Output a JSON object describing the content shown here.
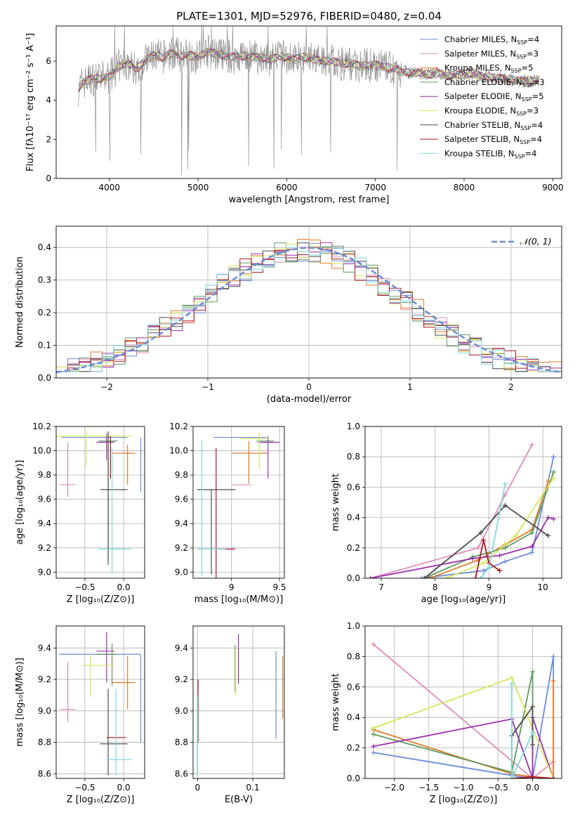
{
  "figure": {
    "title": "PLATE=1301, MJD=52976, FIBERID=0480, z=0.04"
  },
  "chart_data": [
    {
      "id": "spectrum",
      "type": "line",
      "xlabel": "wavelength [Angstrom, rest frame]",
      "ylabel": "Flux [fλ10⁻¹⁷ erg cm⁻² s⁻¹ A⁻¹]",
      "xlim": [
        3400,
        9100
      ],
      "ylim": [
        0,
        7.8
      ],
      "xticks": [
        4000,
        5000,
        6000,
        7000,
        8000,
        9000
      ],
      "yticks": [
        0,
        2,
        4,
        6
      ],
      "grid": false,
      "legend_position": "top-right",
      "data_model": "grey",
      "series": [
        {
          "name": "Chabrier MILES, N_SSP=4",
          "color": "#6a8cd8"
        },
        {
          "name": "Salpeter MILES, N_SSP=3",
          "color": "#e08cb9"
        },
        {
          "name": "Kroupa MILES, N_SSP=5",
          "color": "#e07b26"
        },
        {
          "name": "Chabrier ELODIE, N_SSP=3",
          "color": "#5e9a5e"
        },
        {
          "name": "Salpeter ELODIE, N_SSP=5",
          "color": "#9b2fae"
        },
        {
          "name": "Kroupa ELODIE, N_SSP=3",
          "color": "#d7e65c"
        },
        {
          "name": "Chabrier STELIB, N_SSP=4",
          "color": "#4d4d4d"
        },
        {
          "name": "Salpeter STELIB, N_SSP=4",
          "color": "#b0141c"
        },
        {
          "name": "Kroupa STELIB, N_SSP=4",
          "color": "#7fd9e0"
        }
      ],
      "model_curve": {
        "x": [
          3650,
          3700,
          3800,
          3900,
          4000,
          4100,
          4200,
          4300,
          4400,
          4500,
          4600,
          4700,
          4800,
          4900,
          5000,
          5100,
          5200,
          5300,
          5400,
          5500,
          5600,
          5700,
          5800,
          5900,
          6000,
          6100,
          6200,
          6300,
          6400,
          6500,
          6600,
          6700,
          6800,
          6900,
          7000,
          7100,
          7200,
          7300,
          7400,
          7500,
          7600,
          7700,
          7800,
          7900,
          8000,
          8100,
          8200,
          8300,
          8400,
          8500,
          8600,
          8700,
          8800,
          8850
        ],
        "y": [
          4.6,
          4.9,
          5.1,
          5.1,
          5.2,
          5.7,
          5.9,
          5.6,
          6.0,
          6.3,
          6.2,
          6.4,
          6.3,
          6.3,
          6.2,
          6.5,
          6.4,
          6.3,
          6.2,
          6.3,
          6.2,
          6.2,
          6.1,
          6.2,
          6.2,
          6.1,
          6.2,
          6.1,
          6.0,
          6.0,
          5.9,
          5.9,
          5.8,
          5.8,
          5.8,
          5.7,
          5.6,
          5.5,
          5.4,
          5.4,
          5.3,
          5.4,
          5.3,
          5.3,
          5.3,
          5.4,
          5.2,
          5.2,
          5.1,
          5.1,
          5.0,
          5.0,
          5.0,
          5.0
        ]
      }
    },
    {
      "id": "residuals",
      "type": "line",
      "xlabel": "(data-model)/error",
      "ylabel": "Normed distribution",
      "xlim": [
        -2.5,
        2.5
      ],
      "ylim": [
        0,
        0.465
      ],
      "xticks": [
        -2,
        -1,
        0,
        1,
        2
      ],
      "yticks": [
        0.0,
        0.1,
        0.2,
        0.3,
        0.4
      ],
      "grid": true,
      "legend_position": "top-right",
      "legend_entry": "𝒩(0, 1)",
      "normal_curve": {
        "mean": 0,
        "sigma": 1,
        "color": "#6a8cd8"
      },
      "hist_bins": 44
    },
    {
      "id": "age-vs-Z",
      "type": "scatter",
      "xlabel": "Z [log₁₀(Z/Z⊙)]",
      "ylabel": "age  [log₁₀(age/yr)]",
      "xlim": [
        -0.87,
        0.27
      ],
      "ylim": [
        8.95,
        10.2
      ],
      "xticks": [
        -0.5,
        0.0
      ],
      "xticklabels": [
        "−0.5",
        "0.0"
      ],
      "yticks": [
        9.0,
        9.2,
        9.4,
        9.6,
        9.8,
        10.0,
        10.2
      ],
      "grid": true,
      "points": [
        {
          "color": "#6a8cd8",
          "x": 0.22,
          "y": 10.11,
          "xerr": [
            0.0,
            0.0
          ],
          "yerr": [
            0.45,
            0.0
          ]
        },
        {
          "color": "#6a8cd8",
          "x": -0.35,
          "y": 10.11,
          "xerr": [
            0.45,
            0.4
          ],
          "yerr": [
            0,
            0
          ]
        },
        {
          "color": "#e08cb9",
          "x": -0.72,
          "y": 9.72,
          "xerr": [
            0.1,
            0.1
          ],
          "yerr": [
            0.1,
            0.35
          ]
        },
        {
          "color": "#e07b26",
          "x": 0.05,
          "y": 9.98,
          "xerr": [
            0.2,
            0.1
          ],
          "yerr": [
            0.26,
            0.07
          ]
        },
        {
          "color": "#5e9a5e",
          "x": -0.2,
          "y": 10.08,
          "xerr": [
            0.12,
            0.12
          ],
          "yerr": [
            0.97,
            0.05
          ]
        },
        {
          "color": "#9b2fae",
          "x": -0.22,
          "y": 10.07,
          "xerr": [
            0.13,
            0.1
          ],
          "yerr": [
            0.15,
            0.07
          ]
        },
        {
          "color": "#d7e65c",
          "x": -0.48,
          "y": 10.12,
          "xerr": [
            0.4,
            0.6
          ],
          "yerr": [
            0.25,
            0.05
          ]
        },
        {
          "color": "#4d4d4d",
          "x": -0.2,
          "y": 9.68,
          "xerr": [
            0.1,
            0.25
          ],
          "yerr": [
            0.62,
            0.48
          ]
        },
        {
          "color": "#b0141c",
          "x": -0.17,
          "y": 10.07,
          "xerr": [
            0,
            0
          ],
          "yerr": [
            0.3,
            0.05
          ]
        },
        {
          "color": "#7fd9e0",
          "x": -0.15,
          "y": 9.19,
          "xerr": [
            0.18,
            0.25
          ],
          "yerr": [
            0.2,
            0.83
          ]
        }
      ]
    },
    {
      "id": "age-vs-mass",
      "type": "scatter",
      "xlabel": "mass [log₁₀(M/M⊙)]",
      "ylabel": "",
      "xlim": [
        8.6,
        9.55
      ],
      "ylim": [
        8.95,
        10.2
      ],
      "xticks": [
        9.0,
        9.5
      ],
      "yticks": [
        9.0,
        9.2,
        9.4,
        9.6,
        9.8,
        10.0,
        10.2
      ],
      "grid": true,
      "points": [
        {
          "color": "#6a8cd8",
          "x": 9.36,
          "y": 10.11,
          "xerr": [
            0.55,
            0.0
          ],
          "yerr": [
            0.0,
            0.0
          ]
        },
        {
          "color": "#e08cb9",
          "x": 9.01,
          "y": 9.72,
          "xerr": [
            0.0,
            0.2
          ],
          "yerr": [
            0,
            0
          ]
        },
        {
          "color": "#e07b26",
          "x": 9.18,
          "y": 9.98,
          "xerr": [
            0.18,
            0.2
          ],
          "yerr": [
            0.25,
            0.1
          ]
        },
        {
          "color": "#5e9a5e",
          "x": 9.36,
          "y": 10.08,
          "xerr": [
            0.1,
            0.08
          ],
          "yerr": [
            0,
            0
          ]
        },
        {
          "color": "#9b2fae",
          "x": 9.38,
          "y": 10.07,
          "xerr": [
            0.1,
            0.12
          ],
          "yerr": [
            0.3,
            0.05
          ]
        },
        {
          "color": "#d7e65c",
          "x": 9.29,
          "y": 10.1,
          "xerr": [
            0.2,
            0.1
          ],
          "yerr": [
            0.25,
            0.05
          ]
        },
        {
          "color": "#4d4d4d",
          "x": 8.79,
          "y": 9.68,
          "xerr": [
            0.15,
            0.25
          ],
          "yerr": [
            0.7,
            0.0
          ]
        },
        {
          "color": "#b0141c",
          "x": 8.84,
          "y": 9.19,
          "xerr": [
            0.0,
            0.2
          ],
          "yerr": [
            0.3,
            0.83
          ]
        },
        {
          "color": "#7fd9e0",
          "x": 8.69,
          "y": 9.19,
          "xerr": [
            0.05,
            0.25
          ],
          "yerr": [
            0.22,
            0.9
          ]
        }
      ]
    },
    {
      "id": "mass-weight-vs-age",
      "type": "line",
      "xlabel": "age  [log₁₀(age/yr)]",
      "ylabel": "mass weight",
      "xlim": [
        6.7,
        10.35
      ],
      "ylim": [
        0,
        1.0
      ],
      "xticks": [
        7,
        8,
        9,
        10
      ],
      "yticks": [
        0.0,
        0.2,
        0.4,
        0.6,
        0.8,
        1.0
      ],
      "grid": true,
      "series": [
        {
          "color": "#e08cb9",
          "x": [
            6.8,
            8.8,
            9.3,
            9.8
          ],
          "y": [
            0.0,
            0.2,
            0.55,
            0.88
          ]
        },
        {
          "color": "#6a8cd8",
          "x": [
            7.75,
            8.9,
            9.3,
            9.8,
            10.2
          ],
          "y": [
            0.0,
            0.05,
            0.11,
            0.17,
            0.8
          ]
        },
        {
          "color": "#e07b26",
          "x": [
            7.9,
            8.8,
            9.3,
            9.8,
            10.1
          ],
          "y": [
            0.0,
            0.12,
            0.22,
            0.32,
            0.64
          ]
        },
        {
          "color": "#5e9a5e",
          "x": [
            7.8,
            8.7,
            9.3,
            9.8,
            10.2
          ],
          "y": [
            0.0,
            0.14,
            0.2,
            0.3,
            0.7
          ]
        },
        {
          "color": "#9b2fae",
          "x": [
            6.8,
            8.7,
            9.2,
            9.8,
            10.1,
            10.2
          ],
          "y": [
            0.0,
            0.13,
            0.15,
            0.21,
            0.4,
            0.39
          ]
        },
        {
          "color": "#d7e65c",
          "x": [
            8.2,
            8.9,
            9.5,
            10.2
          ],
          "y": [
            0.0,
            0.1,
            0.28,
            0.66
          ]
        },
        {
          "color": "#4d4d4d",
          "x": [
            7.8,
            8.85,
            9.3,
            10.1
          ],
          "y": [
            0.0,
            0.3,
            0.48,
            0.28
          ]
        },
        {
          "color": "#b0141c",
          "x": [
            8.75,
            8.9,
            9.0,
            9.2
          ],
          "y": [
            0.0,
            0.25,
            0.1,
            0.05
          ]
        },
        {
          "color": "#7fd9e0",
          "x": [
            8.85,
            9.0,
            9.3
          ],
          "y": [
            0.0,
            0.07,
            0.62
          ]
        }
      ]
    },
    {
      "id": "mass-vs-Z",
      "type": "scatter",
      "xlabel": "Z [log₁₀(Z/Z⊙)]",
      "ylabel": "mass [log₁₀(M/M⊙)]",
      "xlim": [
        -0.87,
        0.27
      ],
      "ylim": [
        8.57,
        9.54
      ],
      "xticks": [
        -0.5,
        0.0
      ],
      "xticklabels": [
        "−0.5",
        "0.0"
      ],
      "yticks": [
        8.6,
        8.8,
        9.0,
        9.2,
        9.4
      ],
      "grid": true,
      "points": [
        {
          "color": "#6a8cd8",
          "x": 0.22,
          "y": 9.36,
          "xerr": [
            1.05,
            0.0
          ],
          "yerr": [
            0.56,
            0.0
          ]
        },
        {
          "color": "#e08cb9",
          "x": -0.72,
          "y": 9.01,
          "xerr": [
            0.1,
            0.1
          ],
          "yerr": [
            0.08,
            0.3
          ]
        },
        {
          "color": "#e07b26",
          "x": 0.05,
          "y": 9.18,
          "xerr": [
            0.2,
            0.1
          ],
          "yerr": [
            0.17,
            0.17
          ]
        },
        {
          "color": "#5e9a5e",
          "x": -0.15,
          "y": 9.36,
          "xerr": [
            0.2,
            0.05
          ],
          "yerr": [
            0.2,
            0.07
          ]
        },
        {
          "color": "#9b2fae",
          "x": -0.22,
          "y": 9.38,
          "xerr": [
            0.13,
            0.1
          ],
          "yerr": [
            0.2,
            0.12
          ]
        },
        {
          "color": "#d7e65c",
          "x": -0.43,
          "y": 9.29,
          "xerr": [
            0.1,
            0.3
          ],
          "yerr": [
            0.2,
            0.07
          ]
        },
        {
          "color": "#4d4d4d",
          "x": -0.2,
          "y": 8.79,
          "xerr": [
            0.1,
            0.25
          ],
          "yerr": [
            0.2,
            0.35
          ]
        },
        {
          "color": "#b0141c",
          "x": -0.17,
          "y": 8.83,
          "xerr": [
            0.05,
            0.2
          ],
          "yerr": [
            0.0,
            0.0
          ]
        },
        {
          "color": "#7fd9e0",
          "x": -0.1,
          "y": 8.69,
          "xerr": [
            0.12,
            0.2
          ],
          "yerr": [
            0.1,
            0.45
          ]
        }
      ]
    },
    {
      "id": "mass-vs-EBV",
      "type": "scatter",
      "xlabel": "E(B-V)",
      "ylabel": "",
      "xlim": [
        -0.008,
        0.157
      ],
      "ylim": [
        8.57,
        9.54
      ],
      "xticks": [
        0.0,
        0.1
      ],
      "yticks": [
        8.6,
        8.8,
        9.0,
        9.2,
        9.4
      ],
      "grid": true,
      "points": [
        {
          "color": "#6a8cd8",
          "x": 0.142,
          "y": 9.1,
          "xerr": [
            0,
            0
          ],
          "yerr": [
            0.28,
            0.28
          ]
        },
        {
          "color": "#e07b26",
          "x": 0.154,
          "y": 9.15,
          "xerr": [
            0,
            0
          ],
          "yerr": [
            0.2,
            0.2
          ]
        },
        {
          "color": "#5e9a5e",
          "x": 0.068,
          "y": 9.27,
          "xerr": [
            0,
            0
          ],
          "yerr": [
            0.15,
            0.15
          ]
        },
        {
          "color": "#9b2fae",
          "x": 0.074,
          "y": 9.33,
          "xerr": [
            0,
            0
          ],
          "yerr": [
            0.16,
            0.16
          ]
        },
        {
          "color": "#d7e65c",
          "x": 0.069,
          "y": 9.25,
          "xerr": [
            0,
            0
          ],
          "yerr": [
            0.15,
            0.15
          ]
        },
        {
          "color": "#4d4d4d",
          "x": 0.0,
          "y": 8.9,
          "xerr": [
            0,
            0
          ],
          "yerr": [
            0.3,
            0.2
          ]
        },
        {
          "color": "#b0141c",
          "x": 0.001,
          "y": 9.0,
          "xerr": [
            0,
            0
          ],
          "yerr": [
            0.2,
            0.2
          ]
        },
        {
          "color": "#7fd9e0",
          "x": 0.0,
          "y": 8.9,
          "xerr": [
            0,
            0
          ],
          "yerr": [
            0.3,
            0.2
          ]
        }
      ]
    },
    {
      "id": "mass-weight-vs-Z",
      "type": "line",
      "xlabel": "Z [log₁₀(Z/Z⊙)]",
      "ylabel": "mass weight",
      "xlim": [
        -2.42,
        0.42
      ],
      "ylim": [
        0,
        1.0
      ],
      "xticks": [
        -2.0,
        -1.5,
        -1.0,
        -0.5,
        0.0
      ],
      "xticklabels": [
        "−2.0",
        "−1.5",
        "−1.0",
        "−0.5",
        "0.0"
      ],
      "yticks": [
        0.0,
        0.2,
        0.4,
        0.6,
        0.8,
        1.0
      ],
      "grid": true,
      "series": [
        {
          "color": "#e08cb9",
          "x": [
            -2.3,
            0.0,
            0.3
          ],
          "y": [
            0.88,
            0.0,
            0.11
          ]
        },
        {
          "color": "#6a8cd8",
          "x": [
            -2.3,
            -0.3,
            0.0,
            0.3,
            0.3
          ],
          "y": [
            0.17,
            0.02,
            0.0,
            0.8,
            0.0
          ]
        },
        {
          "color": "#e07b26",
          "x": [
            -2.3,
            -0.3,
            0.0,
            0.3,
            0.3
          ],
          "y": [
            0.32,
            0.03,
            0.01,
            0.0,
            0.64
          ]
        },
        {
          "color": "#5e9a5e",
          "x": [
            -2.3,
            -0.3,
            0.0,
            0.0
          ],
          "y": [
            0.29,
            0.04,
            0.7,
            0.0
          ]
        },
        {
          "color": "#9b2fae",
          "x": [
            -2.3,
            -0.3,
            0.0,
            0.0,
            0.3
          ],
          "y": [
            0.21,
            0.39,
            0.0,
            0.4,
            0.0
          ]
        },
        {
          "color": "#d7e65c",
          "x": [
            -2.3,
            -0.3,
            0.3
          ],
          "y": [
            0.33,
            0.66,
            0.0
          ]
        },
        {
          "color": "#4d4d4d",
          "x": [
            -0.3,
            -0.3,
            0.0,
            0.0
          ],
          "y": [
            0.0,
            0.28,
            0.47,
            0.22
          ]
        },
        {
          "color": "#b0141c",
          "x": [
            -0.3,
            0.0,
            0.3
          ],
          "y": [
            0.0,
            0.01,
            0.0
          ]
        },
        {
          "color": "#7fd9e0",
          "x": [
            -0.3,
            -0.3,
            0.0
          ],
          "y": [
            0.62,
            0.0,
            0.3
          ]
        }
      ]
    }
  ]
}
